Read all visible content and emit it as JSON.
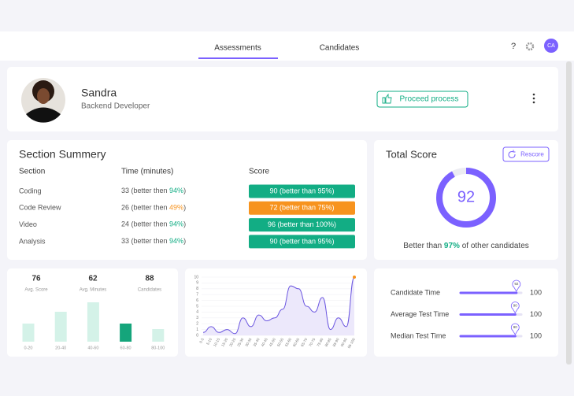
{
  "nav": {
    "tabs": [
      "Assessments",
      "Candidates"
    ],
    "help": "?",
    "avatar": "CA"
  },
  "profile": {
    "name": "Sandra",
    "role": "Backend Developer",
    "action": "Proceed process"
  },
  "section_summary": {
    "title": "Section Summery",
    "headers": [
      "Section",
      "Time (minutes)",
      "Score"
    ],
    "rows": [
      {
        "section": "Coding",
        "time": "33 (better then ",
        "time_pct": "94%",
        "time_end": ")",
        "score": "90  (better than 95%)",
        "color": "#12ad84"
      },
      {
        "section": "Code Review",
        "time": "26 (better then ",
        "time_pct": "49%",
        "time_end": ")",
        "score": "72  (better than 75%)",
        "color": "#f7931e"
      },
      {
        "section": "Video",
        "time": "24 (better then ",
        "time_pct": "94%",
        "time_end": ")",
        "score": "96  (better than 100%)",
        "color": "#12ad84"
      },
      {
        "section": "Analysis",
        "time": "33 (better then ",
        "time_pct": "94%",
        "time_end": ")",
        "score": "90  (better than 95%)",
        "color": "#12ad84"
      }
    ]
  },
  "total_score": {
    "title": "Total Score",
    "button": "Rescore",
    "value": 92,
    "scale": [
      0,
      100
    ],
    "color": "#7b61ff",
    "footer": [
      "Better than ",
      "97%",
      " of other candidates"
    ]
  },
  "score_distribution": {
    "type": "bar",
    "stats": [
      {
        "value": "76",
        "label": "Avg. Score"
      },
      {
        "value": "62",
        "label": "Avg. Minutes"
      },
      {
        "value": "88",
        "label": "Candidates"
      }
    ],
    "categories": [
      "0-20",
      "20-40",
      "40-60",
      "60-80",
      "80-100"
    ],
    "values": [
      23,
      38,
      50,
      23,
      16
    ],
    "colors": [
      "#d4f2e8",
      "#d4f2e8",
      "#d4f2e8",
      "#15a57b",
      "#d4f2e8"
    ]
  },
  "chart_data": {
    "type": "line",
    "categories": [
      "0-5",
      "5-10",
      "10-15",
      "15-20",
      "20-25",
      "25-30",
      "30-35",
      "35-40",
      "40-45",
      "45-50",
      "50-55",
      "55-60",
      "60-65",
      "65-70",
      "70-75",
      "75-80",
      "80-85",
      "85-90",
      "90-95",
      "95-100"
    ],
    "values": [
      0.5,
      1.5,
      0.5,
      1,
      0.3,
      3,
      1.5,
      3.5,
      2.5,
      3,
      4.5,
      8.5,
      8,
      5,
      4,
      6.5,
      1,
      3,
      1.5,
      10
    ],
    "ylim": [
      0,
      10
    ],
    "yticks": [
      0,
      1,
      2,
      3,
      4,
      5,
      6,
      7,
      8,
      9,
      10
    ],
    "color": "#6b56e0",
    "grid": true
  },
  "timings": {
    "color": "#7b61ff",
    "rows": [
      {
        "label": "Candidate Time",
        "value": 92,
        "max": 100
      },
      {
        "label": "Average Test Time",
        "value": 90,
        "max": 100
      },
      {
        "label": "Median Test Time",
        "value": 90,
        "max": 100
      }
    ]
  }
}
